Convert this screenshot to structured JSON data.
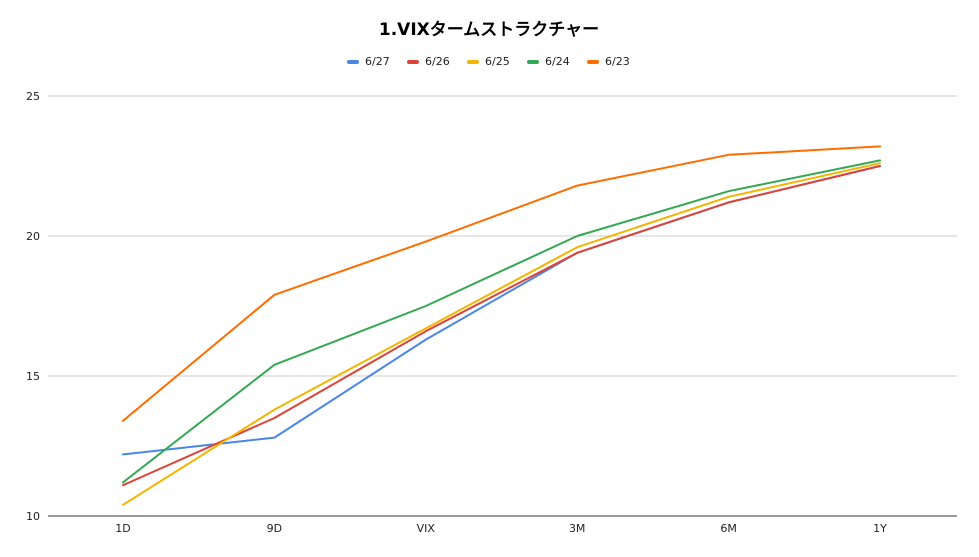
{
  "chart_data": {
    "type": "line",
    "title": "1.VIXタームストラクチャー",
    "categories": [
      "1D",
      "9D",
      "VIX",
      "3M",
      "6M",
      "1Y"
    ],
    "ylim": [
      10,
      25
    ],
    "yticks": [
      10,
      15,
      20,
      25
    ],
    "grid": true,
    "legend_position": "top",
    "xlabel": "",
    "ylabel": "",
    "series": [
      {
        "name": "6/27",
        "color": "#4a86e8",
        "values": [
          12.2,
          12.8,
          16.3,
          19.4,
          21.2,
          22.5
        ]
      },
      {
        "name": "6/26",
        "color": "#db4437",
        "values": [
          11.1,
          13.5,
          16.6,
          19.4,
          21.2,
          22.5
        ]
      },
      {
        "name": "6/25",
        "color": "#f4b400",
        "values": [
          10.4,
          13.8,
          16.7,
          19.6,
          21.4,
          22.6
        ]
      },
      {
        "name": "6/24",
        "color": "#34a853",
        "values": [
          11.2,
          15.4,
          17.5,
          20.0,
          21.6,
          22.7
        ]
      },
      {
        "name": "6/23",
        "color": "#ff6d01",
        "values": [
          13.4,
          17.9,
          19.8,
          21.8,
          22.9,
          23.2
        ]
      }
    ]
  }
}
